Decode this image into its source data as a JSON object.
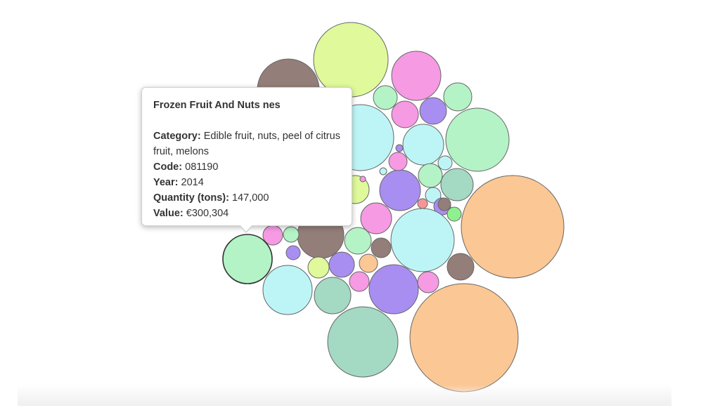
{
  "tooltip": {
    "title": "Frozen Fruit And Nuts nes",
    "category_label": "Category:",
    "category_value": "Edible fruit, nuts, peel of citrus fruit, melons",
    "code_label": "Code:",
    "code_value": "081190",
    "year_label": "Year:",
    "year_value": "2014",
    "quantity_label": "Quantity (tons):",
    "quantity_value": "147,000",
    "value_label": "Value:",
    "value_value": "€300,304"
  },
  "palette": {
    "brown": "#937e79",
    "lime": "#dff99b",
    "pink": "#f69ae4",
    "mint": "#b4f3c6",
    "cyan": "#bdf5f6",
    "lavender": "#a88ef1",
    "orange": "#fbc794",
    "seagreen": "#a4d9c4",
    "green": "#8ef08e",
    "red": "#f59598"
  },
  "chart_data": {
    "type": "bubble",
    "highlighted_index": 40,
    "bubbles": [
      {
        "color": "brown"
      },
      {
        "color": "lime"
      },
      {
        "color": "pink"
      },
      {
        "color": "mint"
      },
      {
        "color": "mint"
      },
      {
        "color": "pink"
      },
      {
        "color": "lavender"
      },
      {
        "color": "cyan"
      },
      {
        "color": "cyan"
      },
      {
        "color": "mint"
      },
      {
        "color": "mint"
      },
      {
        "color": "cyan"
      },
      {
        "color": "seagreen"
      },
      {
        "color": "lavender"
      },
      {
        "color": "cyan"
      },
      {
        "color": "lime"
      },
      {
        "color": "lavender"
      },
      {
        "color": "brown"
      },
      {
        "color": "red"
      },
      {
        "color": "green"
      },
      {
        "color": "orange"
      },
      {
        "color": "pink"
      },
      {
        "color": "cyan"
      },
      {
        "color": "brown"
      },
      {
        "color": "mint"
      },
      {
        "color": "brown"
      },
      {
        "color": "pink"
      },
      {
        "color": "mint"
      },
      {
        "color": "lavender"
      },
      {
        "color": "brown"
      },
      {
        "color": "cyan"
      },
      {
        "color": "lime"
      },
      {
        "color": "lavender"
      },
      {
        "color": "orange"
      },
      {
        "color": "seagreen"
      },
      {
        "color": "pink"
      },
      {
        "color": "lavender"
      },
      {
        "color": "pink"
      },
      {
        "color": "seagreen"
      },
      {
        "color": "orange"
      },
      {
        "color": "mint"
      },
      {
        "color": "pink"
      },
      {
        "color": "lavender"
      },
      {
        "color": "pink"
      },
      {
        "color": "cyan"
      }
    ]
  }
}
